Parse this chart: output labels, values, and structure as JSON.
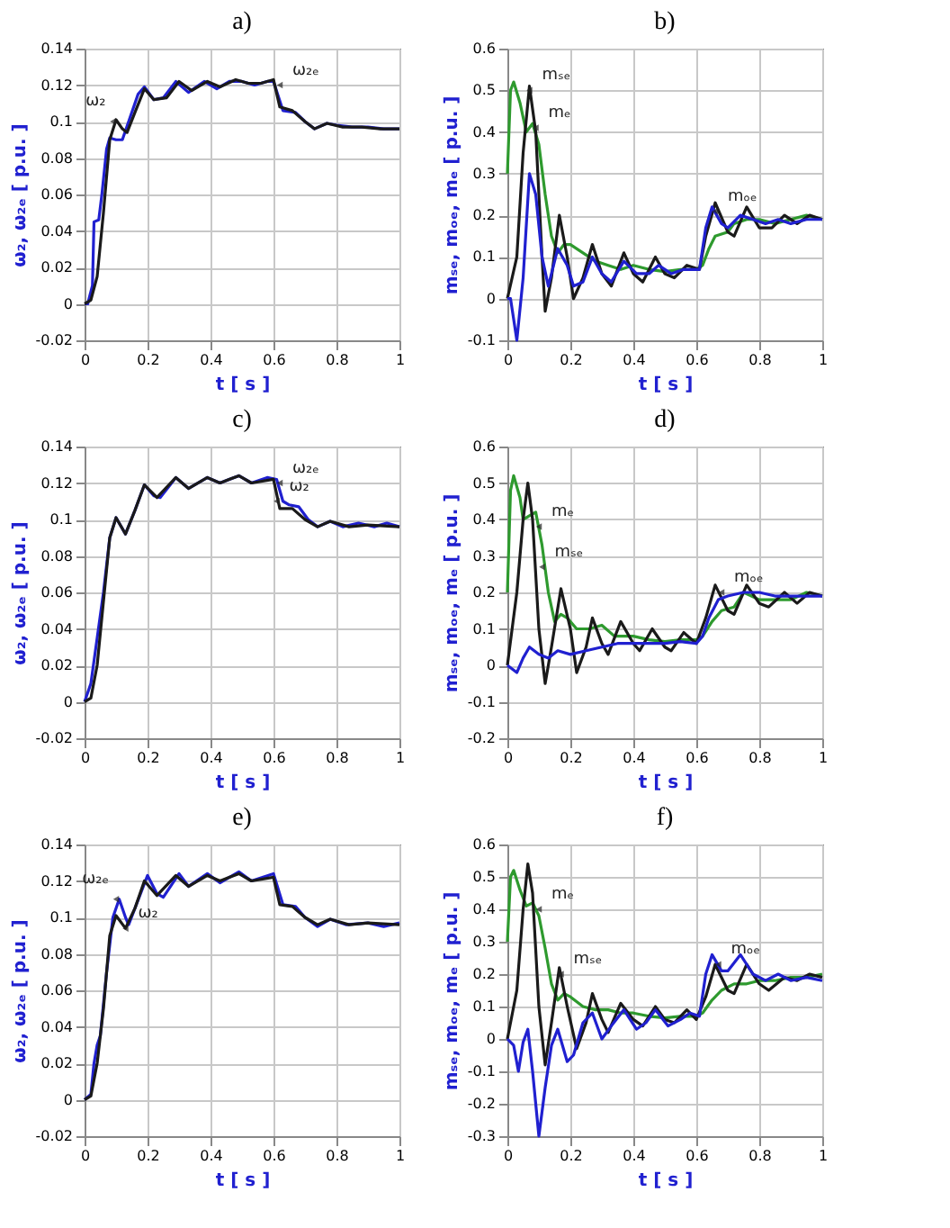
{
  "chart_data": [
    {
      "type": "line",
      "title": "a)",
      "xlabel": "t [ s ]",
      "ylabel": "ω₂, ω₂ₑ [ p.u. ]",
      "xlim": [
        0,
        1
      ],
      "xticks": [
        0,
        0.2,
        0.4,
        0.6,
        0.8,
        1
      ],
      "ylim": [
        -0.02,
        0.14
      ],
      "yticks": [
        -0.02,
        0,
        0.02,
        0.04,
        0.06,
        0.08,
        0.1,
        0.12,
        0.14
      ],
      "grid": true,
      "line_style": "solid",
      "series": [
        {
          "color": "#2020d0",
          "x": [
            0,
            0.01,
            0.025,
            0.03,
            0.045,
            0.055,
            0.07,
            0.08,
            0.1,
            0.12,
            0.14,
            0.17,
            0.19,
            0.22,
            0.25,
            0.29,
            0.33,
            0.38,
            0.42,
            0.46,
            0.5,
            0.54,
            0.58,
            0.6,
            0.63,
            0.67,
            0.7,
            0.73,
            0.77,
            0.8,
            0.85,
            0.9,
            0.95,
            1
          ],
          "values": [
            0,
            0,
            0.01,
            0.045,
            0.046,
            0.06,
            0.085,
            0.091,
            0.09,
            0.09,
            0.1,
            0.115,
            0.119,
            0.112,
            0.113,
            0.122,
            0.116,
            0.122,
            0.118,
            0.122,
            0.122,
            0.12,
            0.122,
            0.122,
            0.106,
            0.105,
            0.1,
            0.096,
            0.099,
            0.098,
            0.097,
            0.097,
            0.096,
            0.096
          ]
        },
        {
          "color": "#1a1a1a",
          "x": [
            0,
            0.02,
            0.04,
            0.06,
            0.08,
            0.1,
            0.12,
            0.135,
            0.16,
            0.19,
            0.22,
            0.26,
            0.3,
            0.34,
            0.39,
            0.43,
            0.48,
            0.52,
            0.56,
            0.6,
            0.62,
            0.66,
            0.7,
            0.73,
            0.77,
            0.82,
            0.88,
            0.94,
            1
          ],
          "values": [
            0,
            0.002,
            0.015,
            0.05,
            0.09,
            0.101,
            0.096,
            0.094,
            0.105,
            0.118,
            0.112,
            0.113,
            0.122,
            0.117,
            0.122,
            0.119,
            0.123,
            0.121,
            0.121,
            0.123,
            0.108,
            0.106,
            0.1,
            0.096,
            0.099,
            0.097,
            0.097,
            0.096,
            0.096
          ]
        }
      ],
      "annotations": [
        {
          "text": "ω₂",
          "x": 0.09,
          "y": 0.1
        },
        {
          "text": "ω₂ₑ",
          "x": 0.62,
          "y": 0.12
        }
      ]
    },
    {
      "type": "line",
      "title": "b)",
      "xlabel": "t [ s ]",
      "ylabel": "mₛₑ, mₒₑ, mₑ [ p.u. ]",
      "xlim": [
        0,
        1
      ],
      "xticks": [
        0,
        0.2,
        0.4,
        0.6,
        0.8,
        1
      ],
      "ylim": [
        -0.1,
        0.6
      ],
      "yticks": [
        -0.1,
        0,
        0.1,
        0.2,
        0.3,
        0.4,
        0.5,
        0.6
      ],
      "grid": true,
      "line_style": "solid",
      "series": [
        {
          "color": "#2e9a2e",
          "x": [
            0,
            0.01,
            0.02,
            0.04,
            0.06,
            0.08,
            0.1,
            0.12,
            0.14,
            0.16,
            0.18,
            0.2,
            0.24,
            0.28,
            0.32,
            0.36,
            0.4,
            0.45,
            0.5,
            0.55,
            0.6,
            0.62,
            0.64,
            0.66,
            0.7,
            0.72,
            0.76,
            0.8,
            0.85,
            0.9,
            0.95,
            1
          ],
          "values": [
            0.3,
            0.5,
            0.52,
            0.47,
            0.4,
            0.42,
            0.37,
            0.25,
            0.15,
            0.11,
            0.13,
            0.13,
            0.11,
            0.09,
            0.08,
            0.07,
            0.08,
            0.07,
            0.065,
            0.07,
            0.07,
            0.08,
            0.12,
            0.15,
            0.16,
            0.18,
            0.19,
            0.19,
            0.18,
            0.19,
            0.2,
            0.19
          ]
        },
        {
          "color": "#1a1a1a",
          "x": [
            0,
            0.03,
            0.05,
            0.07,
            0.09,
            0.11,
            0.12,
            0.14,
            0.165,
            0.19,
            0.21,
            0.24,
            0.27,
            0.3,
            0.33,
            0.37,
            0.4,
            0.43,
            0.47,
            0.5,
            0.53,
            0.57,
            0.61,
            0.63,
            0.66,
            0.7,
            0.72,
            0.76,
            0.8,
            0.84,
            0.88,
            0.92,
            0.96,
            1
          ],
          "values": [
            0,
            0.1,
            0.35,
            0.51,
            0.4,
            0.1,
            -0.03,
            0.05,
            0.2,
            0.1,
            0,
            0.05,
            0.13,
            0.06,
            0.03,
            0.11,
            0.06,
            0.04,
            0.1,
            0.06,
            0.05,
            0.08,
            0.07,
            0.15,
            0.23,
            0.16,
            0.15,
            0.22,
            0.17,
            0.17,
            0.2,
            0.18,
            0.2,
            0.19
          ]
        },
        {
          "color": "#2020d0",
          "x": [
            0,
            0.01,
            0.02,
            0.03,
            0.05,
            0.07,
            0.09,
            0.11,
            0.13,
            0.16,
            0.19,
            0.21,
            0.24,
            0.27,
            0.3,
            0.33,
            0.37,
            0.41,
            0.45,
            0.48,
            0.52,
            0.56,
            0.61,
            0.63,
            0.65,
            0.68,
            0.7,
            0.74,
            0.78,
            0.82,
            0.86,
            0.9,
            0.95,
            1
          ],
          "values": [
            0,
            0,
            -0.05,
            -0.1,
            0.05,
            0.3,
            0.25,
            0.1,
            0.03,
            0.12,
            0.08,
            0.03,
            0.04,
            0.1,
            0.06,
            0.04,
            0.09,
            0.06,
            0.06,
            0.08,
            0.06,
            0.07,
            0.07,
            0.17,
            0.22,
            0.18,
            0.17,
            0.2,
            0.19,
            0.18,
            0.19,
            0.18,
            0.19,
            0.19
          ]
        }
      ],
      "annotations": [
        {
          "text": "mₛₑ",
          "x": 0.07,
          "y": 0.5
        },
        {
          "text": "mₑ",
          "x": 0.09,
          "y": 0.41
        },
        {
          "text": "mₒₑ",
          "x": 0.66,
          "y": 0.21
        }
      ]
    },
    {
      "type": "line",
      "title": "c)",
      "xlabel": "t [ s ]",
      "ylabel": "ω₂, ω₂ₑ [ p.u. ]",
      "xlim": [
        0,
        1
      ],
      "xticks": [
        0,
        0.2,
        0.4,
        0.6,
        0.8,
        1
      ],
      "ylim": [
        -0.02,
        0.14
      ],
      "yticks": [
        -0.02,
        0,
        0.02,
        0.04,
        0.06,
        0.08,
        0.1,
        0.12,
        0.14
      ],
      "grid": true,
      "line_style": "solid",
      "series": [
        {
          "color": "#2020d0",
          "x": [
            0,
            0.02,
            0.04,
            0.06,
            0.08,
            0.1,
            0.12,
            0.13,
            0.16,
            0.19,
            0.22,
            0.24,
            0.29,
            0.33,
            0.39,
            0.43,
            0.49,
            0.53,
            0.58,
            0.61,
            0.63,
            0.65,
            0.68,
            0.71,
            0.74,
            0.78,
            0.82,
            0.87,
            0.92,
            0.96,
            1
          ],
          "values": [
            0,
            0.01,
            0.035,
            0.06,
            0.09,
            0.101,
            0.095,
            0.092,
            0.105,
            0.119,
            0.113,
            0.112,
            0.123,
            0.117,
            0.123,
            0.12,
            0.124,
            0.12,
            0.123,
            0.122,
            0.11,
            0.108,
            0.107,
            0.1,
            0.096,
            0.099,
            0.096,
            0.098,
            0.096,
            0.098,
            0.096
          ]
        },
        {
          "color": "#1a1a1a",
          "x": [
            0,
            0.02,
            0.04,
            0.06,
            0.08,
            0.1,
            0.13,
            0.16,
            0.19,
            0.23,
            0.29,
            0.33,
            0.39,
            0.43,
            0.49,
            0.53,
            0.6,
            0.62,
            0.66,
            0.7,
            0.74,
            0.78,
            0.84,
            0.9,
            1
          ],
          "values": [
            0,
            0.002,
            0.02,
            0.055,
            0.09,
            0.101,
            0.092,
            0.105,
            0.119,
            0.112,
            0.123,
            0.117,
            0.123,
            0.12,
            0.124,
            0.12,
            0.122,
            0.106,
            0.106,
            0.1,
            0.096,
            0.099,
            0.096,
            0.097,
            0.096
          ]
        }
      ],
      "annotations": [
        {
          "text": "ω₂ₑ",
          "x": 0.62,
          "y": 0.12
        },
        {
          "text": "ω₂",
          "x": 0.61,
          "y": 0.11
        }
      ]
    },
    {
      "type": "line",
      "title": "d)",
      "xlabel": "t [ s ]",
      "ylabel": "mₛₑ, mₒₑ, mₑ [ p.u. ]",
      "xlim": [
        0,
        1
      ],
      "xticks": [
        0,
        0.2,
        0.4,
        0.6,
        0.8,
        1
      ],
      "ylim": [
        -0.2,
        0.6
      ],
      "yticks": [
        -0.2,
        -0.1,
        0,
        0.1,
        0.2,
        0.3,
        0.4,
        0.5,
        0.6
      ],
      "grid": true,
      "line_style": "solid",
      "series": [
        {
          "color": "#2e9a2e",
          "x": [
            0,
            0.01,
            0.02,
            0.04,
            0.05,
            0.07,
            0.09,
            0.11,
            0.13,
            0.15,
            0.17,
            0.19,
            0.22,
            0.26,
            0.3,
            0.34,
            0.4,
            0.45,
            0.5,
            0.55,
            0.6,
            0.62,
            0.65,
            0.68,
            0.72,
            0.75,
            0.8,
            0.85,
            0.9,
            0.95,
            1
          ],
          "values": [
            0.2,
            0.48,
            0.52,
            0.46,
            0.4,
            0.41,
            0.42,
            0.33,
            0.2,
            0.12,
            0.14,
            0.13,
            0.1,
            0.1,
            0.11,
            0.08,
            0.08,
            0.07,
            0.065,
            0.07,
            0.07,
            0.08,
            0.12,
            0.15,
            0.16,
            0.2,
            0.18,
            0.18,
            0.18,
            0.2,
            0.19
          ]
        },
        {
          "color": "#1a1a1a",
          "x": [
            0,
            0.03,
            0.05,
            0.065,
            0.08,
            0.1,
            0.12,
            0.14,
            0.17,
            0.2,
            0.22,
            0.25,
            0.27,
            0.3,
            0.32,
            0.36,
            0.4,
            0.42,
            0.46,
            0.5,
            0.52,
            0.56,
            0.6,
            0.63,
            0.66,
            0.7,
            0.72,
            0.76,
            0.8,
            0.83,
            0.88,
            0.92,
            0.96,
            1
          ],
          "values": [
            0,
            0.2,
            0.4,
            0.5,
            0.4,
            0.1,
            -0.05,
            0.05,
            0.21,
            0.1,
            -0.02,
            0.05,
            0.13,
            0.06,
            0.03,
            0.12,
            0.06,
            0.04,
            0.1,
            0.05,
            0.04,
            0.09,
            0.06,
            0.13,
            0.22,
            0.15,
            0.14,
            0.22,
            0.17,
            0.16,
            0.2,
            0.17,
            0.2,
            0.19
          ]
        },
        {
          "color": "#2020d0",
          "x": [
            0,
            0.03,
            0.05,
            0.07,
            0.1,
            0.13,
            0.16,
            0.2,
            0.25,
            0.3,
            0.35,
            0.4,
            0.45,
            0.5,
            0.55,
            0.6,
            0.62,
            0.64,
            0.67,
            0.7,
            0.75,
            0.8,
            0.85,
            0.9,
            0.95,
            1
          ],
          "values": [
            0,
            -0.02,
            0.02,
            0.05,
            0.03,
            0.02,
            0.04,
            0.03,
            0.04,
            0.05,
            0.06,
            0.06,
            0.06,
            0.06,
            0.065,
            0.06,
            0.08,
            0.13,
            0.18,
            0.19,
            0.2,
            0.2,
            0.19,
            0.19,
            0.19,
            0.19
          ]
        }
      ],
      "annotations": [
        {
          "text": "mₑ",
          "x": 0.1,
          "y": 0.38
        },
        {
          "text": "mₛₑ",
          "x": 0.11,
          "y": 0.27
        },
        {
          "text": "mₒₑ",
          "x": 0.68,
          "y": 0.2
        }
      ]
    },
    {
      "type": "line",
      "title": "e)",
      "xlabel": "t [ s ]",
      "ylabel": "ω₂, ω₂ₑ [ p.u. ]",
      "xlim": [
        0,
        1
      ],
      "xticks": [
        0,
        0.2,
        0.4,
        0.6,
        0.8,
        1
      ],
      "ylim": [
        -0.02,
        0.14
      ],
      "yticks": [
        -0.02,
        0,
        0.02,
        0.04,
        0.06,
        0.08,
        0.1,
        0.12,
        0.14
      ],
      "grid": true,
      "line_style": "solid",
      "series": [
        {
          "color": "#2020d0",
          "x": [
            0,
            0.02,
            0.03,
            0.04,
            0.05,
            0.07,
            0.09,
            0.11,
            0.13,
            0.14,
            0.16,
            0.2,
            0.23,
            0.25,
            0.3,
            0.33,
            0.39,
            0.43,
            0.49,
            0.53,
            0.6,
            0.63,
            0.67,
            0.7,
            0.74,
            0.78,
            0.83,
            0.9,
            0.95,
            1
          ],
          "values": [
            0,
            0.003,
            0.02,
            0.03,
            0.035,
            0.07,
            0.1,
            0.11,
            0.1,
            0.096,
            0.105,
            0.123,
            0.113,
            0.111,
            0.124,
            0.117,
            0.124,
            0.119,
            0.125,
            0.12,
            0.124,
            0.107,
            0.106,
            0.1,
            0.095,
            0.099,
            0.096,
            0.097,
            0.095,
            0.097
          ]
        },
        {
          "color": "#1a1a1a",
          "x": [
            0,
            0.02,
            0.04,
            0.06,
            0.08,
            0.1,
            0.13,
            0.16,
            0.19,
            0.23,
            0.29,
            0.33,
            0.39,
            0.43,
            0.49,
            0.53,
            0.6,
            0.62,
            0.66,
            0.7,
            0.74,
            0.78,
            0.84,
            0.9,
            1
          ],
          "values": [
            0,
            0.002,
            0.02,
            0.05,
            0.09,
            0.101,
            0.094,
            0.105,
            0.12,
            0.112,
            0.123,
            0.117,
            0.123,
            0.12,
            0.124,
            0.12,
            0.122,
            0.107,
            0.106,
            0.1,
            0.096,
            0.099,
            0.096,
            0.097,
            0.096
          ]
        }
      ],
      "annotations": [
        {
          "text": "ω₂ₑ",
          "x": 0.1,
          "y": 0.11
        },
        {
          "text": "ω₂",
          "x": 0.13,
          "y": 0.094
        }
      ]
    },
    {
      "type": "line",
      "title": "f)",
      "xlabel": "t [ s ]",
      "ylabel": "mₛₑ, mₒₑ, mₑ [ p.u. ]",
      "xlim": [
        0,
        1
      ],
      "xticks": [
        0,
        0.2,
        0.4,
        0.6,
        0.8,
        1
      ],
      "ylim": [
        -0.3,
        0.6
      ],
      "yticks": [
        -0.3,
        -0.2,
        -0.1,
        0,
        0.1,
        0.2,
        0.3,
        0.4,
        0.5,
        0.6
      ],
      "grid": true,
      "line_style": "solid",
      "series": [
        {
          "color": "#2e9a2e",
          "x": [
            0,
            0.01,
            0.02,
            0.04,
            0.06,
            0.08,
            0.1,
            0.12,
            0.14,
            0.16,
            0.18,
            0.2,
            0.24,
            0.28,
            0.32,
            0.36,
            0.4,
            0.45,
            0.5,
            0.55,
            0.6,
            0.62,
            0.65,
            0.68,
            0.72,
            0.76,
            0.8,
            0.85,
            0.9,
            0.95,
            1
          ],
          "values": [
            0.3,
            0.5,
            0.52,
            0.46,
            0.41,
            0.42,
            0.38,
            0.28,
            0.17,
            0.12,
            0.14,
            0.13,
            0.1,
            0.09,
            0.09,
            0.08,
            0.08,
            0.07,
            0.065,
            0.07,
            0.07,
            0.08,
            0.12,
            0.15,
            0.17,
            0.17,
            0.18,
            0.18,
            0.19,
            0.19,
            0.2
          ]
        },
        {
          "color": "#1a1a1a",
          "x": [
            0,
            0.03,
            0.05,
            0.065,
            0.08,
            0.1,
            0.12,
            0.14,
            0.165,
            0.19,
            0.22,
            0.25,
            0.27,
            0.3,
            0.32,
            0.36,
            0.4,
            0.43,
            0.47,
            0.5,
            0.53,
            0.57,
            0.6,
            0.63,
            0.66,
            0.7,
            0.72,
            0.76,
            0.8,
            0.83,
            0.88,
            0.92,
            0.96,
            1
          ],
          "values": [
            0,
            0.15,
            0.4,
            0.54,
            0.45,
            0.1,
            -0.08,
            0.05,
            0.22,
            0.1,
            -0.03,
            0.05,
            0.14,
            0.06,
            0.02,
            0.11,
            0.06,
            0.04,
            0.1,
            0.06,
            0.05,
            0.09,
            0.06,
            0.13,
            0.23,
            0.15,
            0.14,
            0.23,
            0.17,
            0.15,
            0.19,
            0.18,
            0.2,
            0.19
          ]
        },
        {
          "color": "#2020d0",
          "x": [
            0,
            0.02,
            0.035,
            0.05,
            0.065,
            0.08,
            0.1,
            0.12,
            0.14,
            0.16,
            0.19,
            0.21,
            0.24,
            0.27,
            0.3,
            0.33,
            0.37,
            0.41,
            0.44,
            0.47,
            0.51,
            0.55,
            0.58,
            0.61,
            0.63,
            0.65,
            0.68,
            0.7,
            0.74,
            0.78,
            0.82,
            0.86,
            0.9,
            0.95,
            1
          ],
          "values": [
            0,
            -0.02,
            -0.1,
            -0.01,
            0.03,
            -0.1,
            -0.3,
            -0.15,
            -0.02,
            0.03,
            -0.07,
            -0.05,
            0.05,
            0.08,
            0,
            0.04,
            0.09,
            0.03,
            0.05,
            0.09,
            0.04,
            0.06,
            0.08,
            0.07,
            0.2,
            0.26,
            0.21,
            0.21,
            0.26,
            0.2,
            0.18,
            0.2,
            0.18,
            0.19,
            0.18
          ]
        }
      ],
      "annotations": [
        {
          "text": "mₑ",
          "x": 0.1,
          "y": 0.4
        },
        {
          "text": "mₛₑ",
          "x": 0.17,
          "y": 0.2
        },
        {
          "text": "mₒₑ",
          "x": 0.67,
          "y": 0.23
        }
      ]
    }
  ]
}
